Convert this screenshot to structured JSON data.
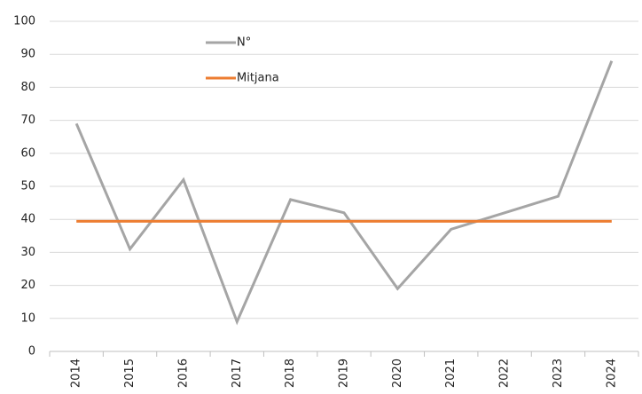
{
  "chart_data": {
    "type": "line",
    "categories": [
      "2014",
      "2015",
      "2016",
      "2017",
      "2018",
      "2019",
      "2020",
      "2021",
      "2022",
      "2023",
      "2024"
    ],
    "series": [
      {
        "name": "N°",
        "color": "#a5a5a5",
        "values": [
          69,
          31,
          52,
          9,
          46,
          42,
          19,
          37,
          42,
          47,
          88
        ]
      },
      {
        "name": "Mitjana",
        "color": "#ed7d31",
        "values": [
          39.4,
          39.4,
          39.4,
          39.4,
          39.4,
          39.4,
          39.4,
          39.4,
          39.4,
          39.4,
          39.4
        ]
      }
    ],
    "ylim": [
      0,
      100
    ],
    "yticks": [
      0,
      10,
      20,
      30,
      40,
      50,
      60,
      70,
      80,
      90,
      100
    ],
    "grid": true
  }
}
